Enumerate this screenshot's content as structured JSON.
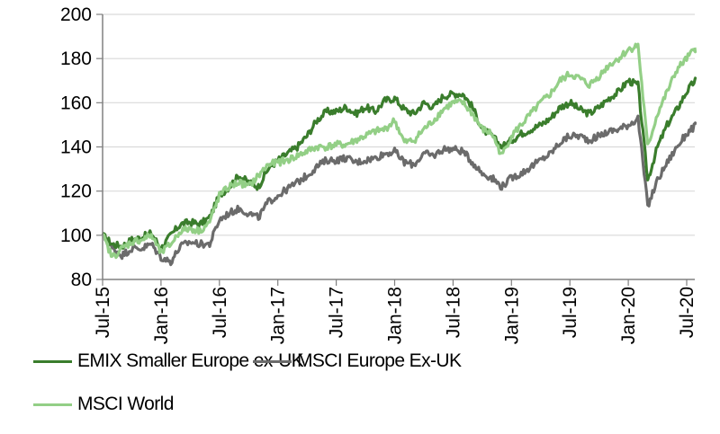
{
  "chart_data": {
    "type": "line",
    "title": "",
    "xlabel": "",
    "ylabel": "",
    "ylim": [
      80,
      200
    ],
    "yticks": [
      "80",
      "100",
      "120",
      "140",
      "160",
      "180",
      "200"
    ],
    "ytick_values": [
      80,
      100,
      120,
      140,
      160,
      180,
      200
    ],
    "xticks": [
      "Jul-15",
      "Jan-16",
      "Jul-16",
      "Jan-17",
      "Jul-17",
      "Jan-18",
      "Jul-18",
      "Jan-19",
      "Jul-19",
      "Jan-20",
      "Jul-20"
    ],
    "xtick_months": [
      0,
      6,
      12,
      18,
      24,
      30,
      36,
      42,
      48,
      54,
      60
    ],
    "x_unit": "months since Jul-15",
    "xlim": [
      0,
      61
    ],
    "grid": "horizontal",
    "legend_position": "bottom",
    "x": [
      0,
      1,
      2,
      3,
      4,
      5,
      6,
      7,
      8,
      9,
      10,
      11,
      12,
      13,
      14,
      15,
      16,
      17,
      18,
      19,
      20,
      21,
      22,
      23,
      24,
      25,
      26,
      27,
      28,
      29,
      30,
      31,
      32,
      33,
      34,
      35,
      36,
      37,
      38,
      39,
      40,
      41,
      42,
      43,
      44,
      45,
      46,
      47,
      48,
      49,
      50,
      51,
      52,
      53,
      54,
      55,
      56,
      57,
      58,
      59,
      60,
      61
    ],
    "series": [
      {
        "name": "EMIX Smaller Europe ex-UK",
        "color": "#3a7d2c",
        "values": [
          100,
          96,
          95,
          98,
          99,
          101,
          94,
          100,
          105,
          106,
          105,
          108,
          118,
          122,
          127,
          124,
          122,
          130,
          134,
          137,
          140,
          145,
          152,
          156,
          156,
          158,
          155,
          158,
          156,
          161,
          162,
          157,
          155,
          160,
          158,
          163,
          164,
          164,
          158,
          148,
          145,
          140,
          143,
          146,
          148,
          150,
          153,
          158,
          160,
          157,
          155,
          158,
          162,
          165,
          170,
          168,
          125,
          140,
          150,
          157,
          165,
          171
        ]
      },
      {
        "name": "MSCI Europe Ex-UK",
        "color": "#6b6b6b",
        "values": [
          100,
          94,
          91,
          94,
          94,
          96,
          90,
          88,
          95,
          97,
          96,
          96,
          107,
          110,
          112,
          110,
          108,
          115,
          118,
          121,
          124,
          127,
          131,
          134,
          134,
          135,
          133,
          134,
          135,
          137,
          138,
          133,
          132,
          137,
          136,
          139,
          139,
          138,
          133,
          128,
          126,
          122,
          126,
          128,
          131,
          134,
          137,
          142,
          145,
          145,
          143,
          145,
          147,
          148,
          150,
          153,
          113,
          125,
          133,
          140,
          146,
          150
        ]
      },
      {
        "name": "MSCI World",
        "color": "#93cf86",
        "values": [
          100,
          90,
          94,
          97,
          98,
          100,
          92,
          96,
          102,
          103,
          102,
          106,
          118,
          122,
          124,
          122,
          127,
          132,
          133,
          134,
          136,
          138,
          140,
          140,
          141,
          141,
          143,
          145,
          147,
          148,
          152,
          142,
          143,
          148,
          152,
          157,
          160,
          160,
          155,
          148,
          146,
          136,
          145,
          150,
          155,
          160,
          164,
          170,
          173,
          171,
          168,
          172,
          177,
          180,
          184,
          186,
          140,
          155,
          165,
          175,
          180,
          185
        ]
      }
    ],
    "legend": [
      {
        "label": "EMIX Smaller Europe ex-UK",
        "color": "#3a7d2c"
      },
      {
        "label": "MSCI Europe Ex-UK",
        "color": "#6b6b6b"
      },
      {
        "label": "MSCI World",
        "color": "#93cf86"
      }
    ]
  }
}
